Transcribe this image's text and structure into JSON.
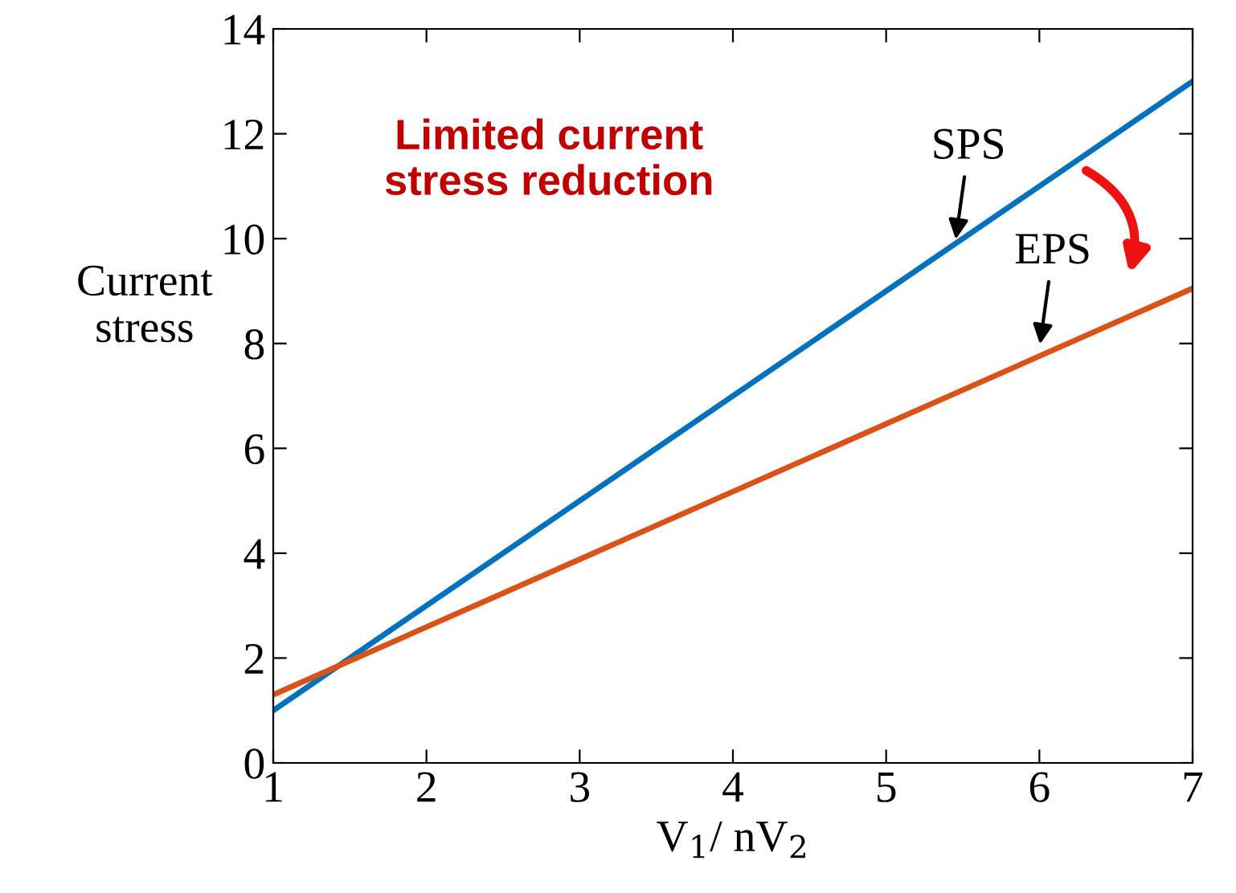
{
  "chart_data": {
    "type": "line",
    "x": [
      1,
      7
    ],
    "series": [
      {
        "color": "#0072bd",
        "values": [
          1.0,
          13.0
        ]
      },
      {
        "color": "#d95319",
        "values": [
          1.3,
          9.05
        ]
      }
    ],
    "xlabel": "V$_{1}$/ nV$_{2}$",
    "ylabel": "Current\nstress",
    "xlim": [
      1,
      7
    ],
    "ylim": [
      0,
      14
    ],
    "xticks": [
      1,
      2,
      3,
      4,
      5,
      6,
      7
    ],
    "yticks": [
      0,
      2,
      4,
      6,
      8,
      10,
      12,
      14
    ],
    "grid": false,
    "legend": false,
    "marker": "none",
    "line_style": "solid",
    "annotations": [
      "Limited current\nstress reduction",
      {
        "text": "SPS",
        "x": 5.45,
        "y": 9.9
      },
      {
        "text": "EPS",
        "x": 6.0,
        "y": 7.9
      }
    ]
  }
}
